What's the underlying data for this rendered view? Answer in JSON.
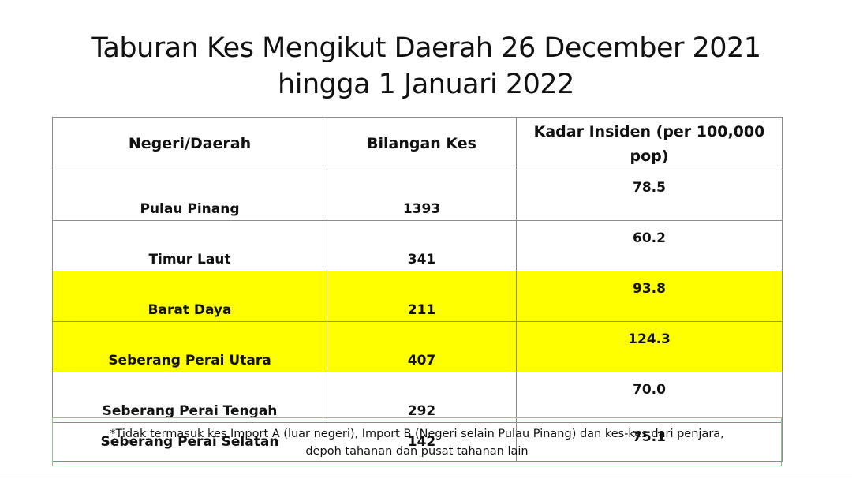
{
  "title": {
    "line1": "Taburan Kes Mengikut Daerah  26 December 2021",
    "line2": "hingga 1 Januari 2022"
  },
  "table": {
    "headers": {
      "region": "Negeri/Daerah",
      "cases": "Bilangan Kes",
      "rate": "Kadar Insiden (per 100,000 pop)"
    },
    "rows": [
      {
        "region": "Pulau Pinang",
        "cases": "1393",
        "rate": "78.5",
        "highlight": false
      },
      {
        "region": "Timur Laut",
        "cases": "341",
        "rate": "60.2",
        "highlight": false
      },
      {
        "region": "Barat Daya",
        "cases": "211",
        "rate": "93.8",
        "highlight": true
      },
      {
        "region": "Seberang Perai Utara",
        "cases": "407",
        "rate": "124.3",
        "highlight": true
      },
      {
        "region": "Seberang Perai Tengah",
        "cases": "292",
        "rate": "70.0",
        "highlight": false
      },
      {
        "region": "Seberang Perai Selatan",
        "cases": "142",
        "rate": "75.1",
        "highlight": false
      }
    ],
    "highlight_color": "#ffff00"
  },
  "footnote": {
    "line1": "*Tidak termasuk kes Import A (luar negeri), Import B (Negeri selain Pulau Pinang) dan kes-kes dari penjara,",
    "line2": "depoh tahanan dan pusat tahanan lain"
  }
}
